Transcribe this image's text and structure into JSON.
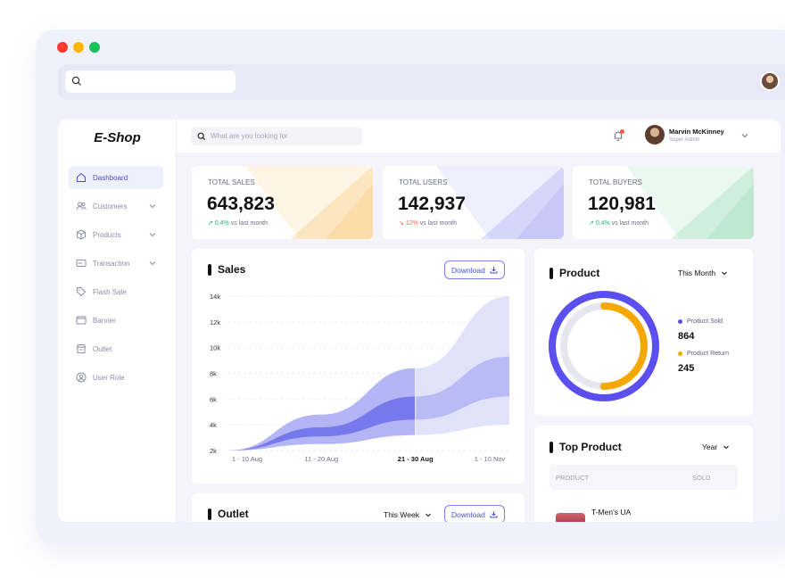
{
  "window": {
    "controls": [
      "close",
      "minimize",
      "maximize"
    ]
  },
  "brand": "E-Shop",
  "nav": [
    {
      "label": "Dashboard",
      "icon": "home-icon",
      "active": true,
      "expandable": false
    },
    {
      "label": "Customers",
      "icon": "users-icon",
      "active": false,
      "expandable": true
    },
    {
      "label": "Products",
      "icon": "box-icon",
      "active": false,
      "expandable": true
    },
    {
      "label": "Transaction",
      "icon": "card-icon",
      "active": false,
      "expandable": true
    },
    {
      "label": "Flash Sale",
      "icon": "tag-icon",
      "active": false,
      "expandable": false
    },
    {
      "label": "Banner",
      "icon": "banner-icon",
      "active": false,
      "expandable": false
    },
    {
      "label": "Outlet",
      "icon": "store-icon",
      "active": false,
      "expandable": false
    },
    {
      "label": "User Role",
      "icon": "user-circle-icon",
      "active": false,
      "expandable": false
    }
  ],
  "header": {
    "search_placeholder": "What are you looking for",
    "user_name": "Marvin McKinney",
    "user_role": "Super Admin"
  },
  "stats": [
    {
      "title": "TOTAL SALES",
      "value": "643,823",
      "delta": "0.4%",
      "delta_dir": "up",
      "delta_suffix": "vs last month",
      "accent": "#f7c56a"
    },
    {
      "title": "TOTAL USERS",
      "value": "142,937",
      "delta": "12%",
      "delta_dir": "down",
      "delta_suffix": "vs last month",
      "accent": "#9e9ff5"
    },
    {
      "title": "TOTAL BUYERS",
      "value": "120,981",
      "delta": "0.4%",
      "delta_dir": "up",
      "delta_suffix": "vs last month",
      "accent": "#8fd6b0"
    }
  ],
  "sales_card": {
    "title": "Sales",
    "download_label": "Download"
  },
  "chart_data": {
    "type": "area",
    "categories": [
      "1 - 10 Aug",
      "11 - 20 Aug",
      "21 - 30 Aug",
      "1 - 10 Nov"
    ],
    "highlight_category": "21 - 30 Aug",
    "yticks": [
      "14k",
      "12k",
      "10k",
      "8k",
      "6k",
      "4k",
      "2k"
    ],
    "ylim": [
      2000,
      14000
    ],
    "x": [
      0,
      1,
      2,
      3
    ],
    "series": [
      {
        "values": [
          2000,
          4800,
          8400,
          14000
        ],
        "color": "#e2e2fa"
      },
      {
        "values": [
          2000,
          3800,
          6200,
          9300
        ],
        "color": "#b9bbf6"
      },
      {
        "values": [
          2000,
          3100,
          4400,
          6200
        ],
        "color": "#b9bbf6"
      },
      {
        "values": [
          2000,
          2500,
          3200,
          4000
        ],
        "color": "#e2e2fa"
      }
    ],
    "grid": true
  },
  "product_card": {
    "title": "Product",
    "period": "This Month",
    "sold_label": "Product Sold",
    "sold_value": "864",
    "return_label": "Product Return",
    "return_value": "245",
    "sold_fraction": 1.0,
    "return_fraction": 0.5,
    "sold_color": "#5b4ff0",
    "return_color": "#f7a800"
  },
  "top_product_card": {
    "title": "Top Product",
    "period": "Year",
    "col_product": "PRODUCT",
    "col_sold": "SOLD",
    "rows": [
      {
        "name": "T-Men's UA"
      }
    ]
  },
  "outlet_card": {
    "title": "Outlet",
    "period": "This Week",
    "download_label": "Download"
  }
}
